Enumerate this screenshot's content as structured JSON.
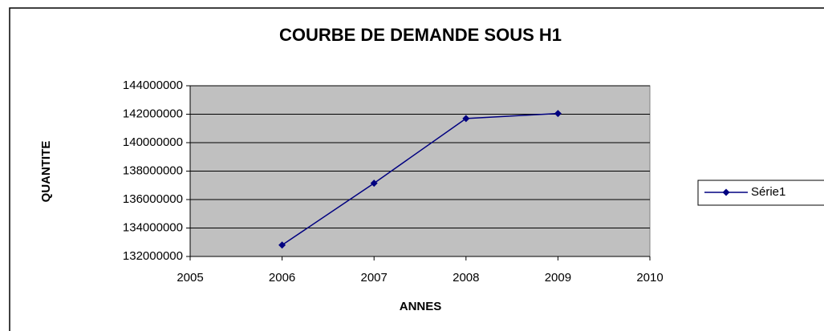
{
  "chart_data": {
    "type": "line",
    "title": "COURBE DE DEMANDE SOUS H1",
    "x_label": "ANNES",
    "y_label": "QUANTITE",
    "x": [
      2006,
      2007,
      2008,
      2009
    ],
    "series": [
      {
        "name": "Série1",
        "color": "#000080",
        "values": [
          132800000,
          137150000,
          141700000,
          142050000
        ]
      }
    ],
    "xlim": [
      2005,
      2010
    ],
    "xticks": [
      2005,
      2006,
      2007,
      2008,
      2009,
      2010
    ],
    "ylim": [
      132000000,
      144000000
    ],
    "yticks": [
      132000000,
      134000000,
      136000000,
      138000000,
      140000000,
      142000000,
      144000000
    ],
    "grid": true,
    "legend": "right"
  }
}
